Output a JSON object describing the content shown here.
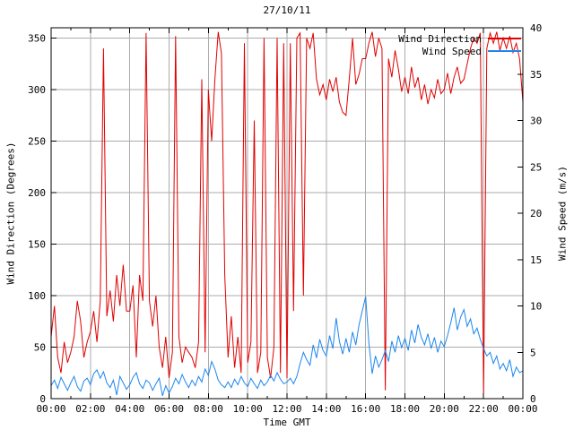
{
  "title": "27/10/11",
  "axes": {
    "x": {
      "label": "Time GMT",
      "tick_labels": [
        "00:00",
        "02:00",
        "04:00",
        "06:00",
        "08:00",
        "10:00",
        "12:00",
        "14:00",
        "16:00",
        "18:00",
        "20:00",
        "22:00",
        "00:00"
      ],
      "major_tick_hours": 2,
      "minor_tick_hours": 1,
      "range_hours": [
        0,
        24
      ]
    },
    "y_left": {
      "label": "Wind Direction (Degrees)",
      "ticks": [
        0,
        50,
        100,
        150,
        200,
        250,
        300,
        350
      ],
      "range": [
        0,
        360
      ]
    },
    "y_right": {
      "label": "Wind Speed (m/s)",
      "ticks": [
        0,
        5,
        10,
        15,
        20,
        25,
        30,
        35,
        40
      ],
      "range": [
        0,
        40
      ]
    }
  },
  "legend": {
    "items": [
      {
        "label": "Wind Direction",
        "color": "#e00000"
      },
      {
        "label": "Wind Speed",
        "color": "#1c86ee"
      }
    ]
  },
  "colors": {
    "grid": "#ababab",
    "border": "#000000",
    "background": "#ffffff"
  },
  "chart_data": {
    "type": "line",
    "title": "27/10/11",
    "xlabel": "Time GMT",
    "x_start_hour": 0,
    "x_end_hour": 24,
    "x_step_minutes": 10,
    "grid": true,
    "legend_position": "top-right-inside",
    "series": [
      {
        "name": "Wind Direction",
        "axis": "left",
        "unit": "degrees",
        "color": "#e00000",
        "ylim": [
          0,
          360
        ],
        "values": [
          60,
          90,
          40,
          25,
          55,
          35,
          45,
          60,
          95,
          75,
          40,
          55,
          65,
          85,
          55,
          95,
          340,
          80,
          105,
          75,
          120,
          90,
          130,
          85,
          85,
          110,
          40,
          120,
          95,
          355,
          95,
          70,
          100,
          50,
          30,
          60,
          20,
          45,
          352,
          60,
          35,
          50,
          45,
          40,
          30,
          55,
          310,
          45,
          300,
          250,
          310,
          356,
          335,
          120,
          40,
          80,
          30,
          60,
          25,
          345,
          35,
          55,
          270,
          25,
          45,
          350,
          40,
          20,
          50,
          350,
          25,
          345,
          20,
          345,
          85,
          350,
          355,
          100,
          350,
          340,
          355,
          310,
          295,
          305,
          290,
          310,
          298,
          312,
          288,
          278,
          275,
          310,
          350,
          305,
          315,
          330,
          330,
          345,
          356,
          332,
          350,
          340,
          8,
          330,
          312,
          338,
          320,
          298,
          312,
          296,
          322,
          302,
          312,
          290,
          305,
          286,
          300,
          292,
          310,
          296,
          300,
          316,
          296,
          312,
          322,
          306,
          310,
          325,
          340,
          350,
          345,
          355,
          5,
          340,
          355,
          345,
          356,
          338,
          350,
          340,
          352,
          336,
          345,
          330,
          288
        ]
      },
      {
        "name": "Wind Speed",
        "axis": "right",
        "unit": "m/s",
        "color": "#1c86ee",
        "ylim": [
          0,
          40
        ],
        "values": [
          1.4,
          2.0,
          1.1,
          2.3,
          1.6,
          0.9,
          1.7,
          2.4,
          1.3,
          0.8,
          1.9,
          2.2,
          1.5,
          2.7,
          3.1,
          2.2,
          2.9,
          1.7,
          1.2,
          2.0,
          0.4,
          2.4,
          1.7,
          1.0,
          1.5,
          2.3,
          2.8,
          1.6,
          1.1,
          2.0,
          1.7,
          0.9,
          1.6,
          2.2,
          0.3,
          1.4,
          0.6,
          1.3,
          2.2,
          1.6,
          2.6,
          1.8,
          1.2,
          2.0,
          1.4,
          2.4,
          1.8,
          3.2,
          2.5,
          4.0,
          3.2,
          2.0,
          1.5,
          1.2,
          1.8,
          1.2,
          2.1,
          1.5,
          2.4,
          1.7,
          1.3,
          2.2,
          1.6,
          1.1,
          2.0,
          1.4,
          1.8,
          2.5,
          1.9,
          2.8,
          2.1,
          1.6,
          1.8,
          2.2,
          1.6,
          2.4,
          3.8,
          5.0,
          4.2,
          3.6,
          5.8,
          4.4,
          6.4,
          5.2,
          4.6,
          6.8,
          5.4,
          8.7,
          6.2,
          4.8,
          6.5,
          5.0,
          7.2,
          5.8,
          8.0,
          9.5,
          11.0,
          6.0,
          2.7,
          4.6,
          3.4,
          4.2,
          5.2,
          4.0,
          6.2,
          5.0,
          6.8,
          5.5,
          6.5,
          5.2,
          7.4,
          6.0,
          8.0,
          6.6,
          5.8,
          7.0,
          5.4,
          6.6,
          5.0,
          6.2,
          5.6,
          6.8,
          8.2,
          9.8,
          7.4,
          8.8,
          9.6,
          7.8,
          8.6,
          7.0,
          7.6,
          6.4,
          5.4,
          4.6,
          5.0,
          3.8,
          4.6,
          3.2,
          3.8,
          3.0,
          4.2,
          2.4,
          3.4,
          2.8,
          3.0
        ]
      }
    ]
  }
}
